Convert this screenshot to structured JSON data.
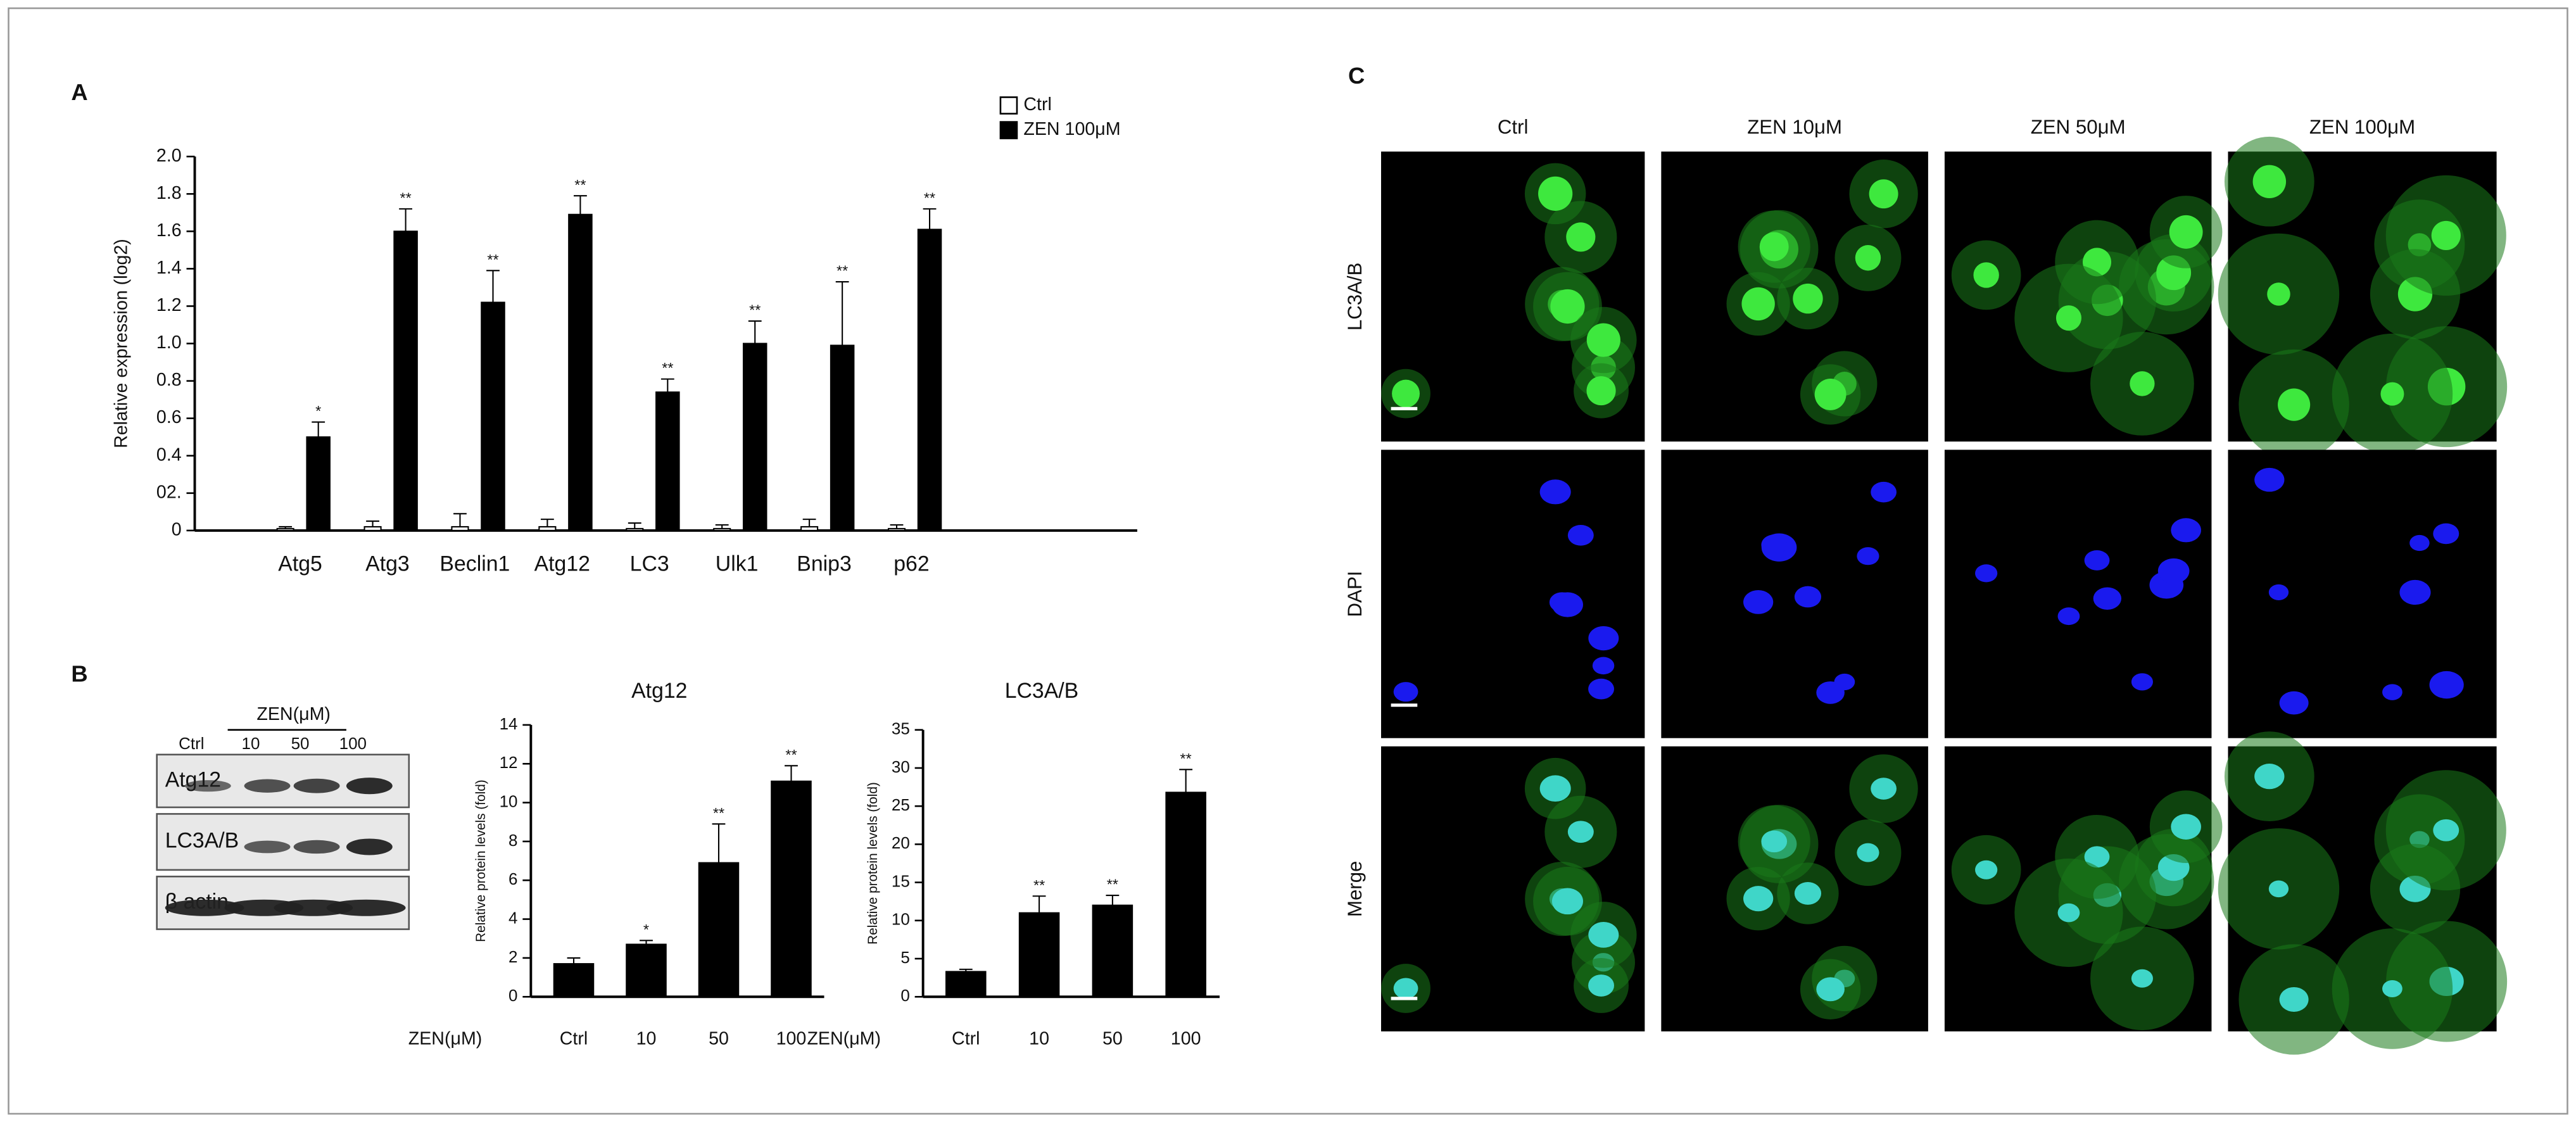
{
  "chart_data": [
    {
      "type": "bar",
      "panel": "A",
      "ylabel": "Relative expression (log2)",
      "categories": [
        "Atg5",
        "Atg3",
        "Beclin1",
        "Atg12",
        "LC3",
        "Ulk1",
        "Bnip3",
        "p62"
      ],
      "series": [
        {
          "name": "Ctrl",
          "color": "#ffffff",
          "values": [
            0.01,
            0.02,
            0.02,
            0.02,
            0.01,
            0.01,
            0.02,
            0.01
          ],
          "errors": [
            0.01,
            0.03,
            0.07,
            0.04,
            0.03,
            0.02,
            0.04,
            0.02
          ]
        },
        {
          "name": "ZEN 100μM",
          "color": "#000000",
          "values": [
            0.5,
            1.6,
            1.22,
            1.69,
            0.74,
            1.0,
            0.99,
            1.61
          ],
          "errors": [
            0.08,
            0.12,
            0.17,
            0.1,
            0.07,
            0.12,
            0.34,
            0.11
          ],
          "annotations": [
            "*",
            "**",
            "**",
            "**",
            "**",
            "**",
            "**",
            "**"
          ]
        }
      ],
      "ylim": [
        0,
        2
      ],
      "yticks": [
        0,
        {
          "value": 0.2,
          "label": "02."
        },
        0.4,
        0.6,
        0.8,
        {
          "value": 1,
          "label": "1.0"
        },
        1.2,
        1.4,
        1.6,
        1.8,
        {
          "value": 2,
          "label": "2.0"
        }
      ]
    },
    {
      "type": "bar",
      "title": "Atg12",
      "ylabel": "Relative protein levels (fold)",
      "xlabel": "ZEN(μM)",
      "categories": [
        "Ctrl",
        "10",
        "50",
        "100"
      ],
      "color": "#000000",
      "values": [
        1.7,
        2.7,
        6.9,
        11.1
      ],
      "errors": [
        0.3,
        0.2,
        2.0,
        0.8
      ],
      "annotations": [
        null,
        "*",
        "**",
        "**"
      ],
      "ylim": [
        0,
        14
      ],
      "yticks": [
        0,
        2,
        4,
        6,
        8,
        10,
        12,
        14
      ]
    },
    {
      "type": "bar",
      "title": "LC3A/B",
      "ylabel": "Relative protein levels (fold)",
      "xlabel": "ZEN(μM)",
      "categories": [
        "Ctrl",
        "10",
        "50",
        "100"
      ],
      "color": "#000000",
      "values": [
        3.3,
        11,
        12,
        26.8
      ],
      "errors": [
        0.3,
        2.2,
        1.3,
        3.0
      ],
      "annotations": [
        null,
        "**",
        "**",
        "**"
      ],
      "ylim": [
        0,
        35
      ],
      "yticks": [
        0,
        5,
        10,
        15,
        20,
        25,
        30,
        35
      ]
    }
  ],
  "blot": {
    "panel": "B",
    "group_label": "ZEN(μM)",
    "lanes": [
      "Ctrl",
      "10",
      "50",
      "100"
    ],
    "rows": [
      "Atg12",
      "LC3A/B",
      "β actin"
    ]
  },
  "micrographs": {
    "panel": "C",
    "columns": [
      "Ctrl",
      "ZEN 10μM",
      "ZEN 50μM",
      "ZEN 100μM"
    ],
    "rows": [
      "LC3A/B",
      "DAPI",
      "Merge"
    ]
  }
}
